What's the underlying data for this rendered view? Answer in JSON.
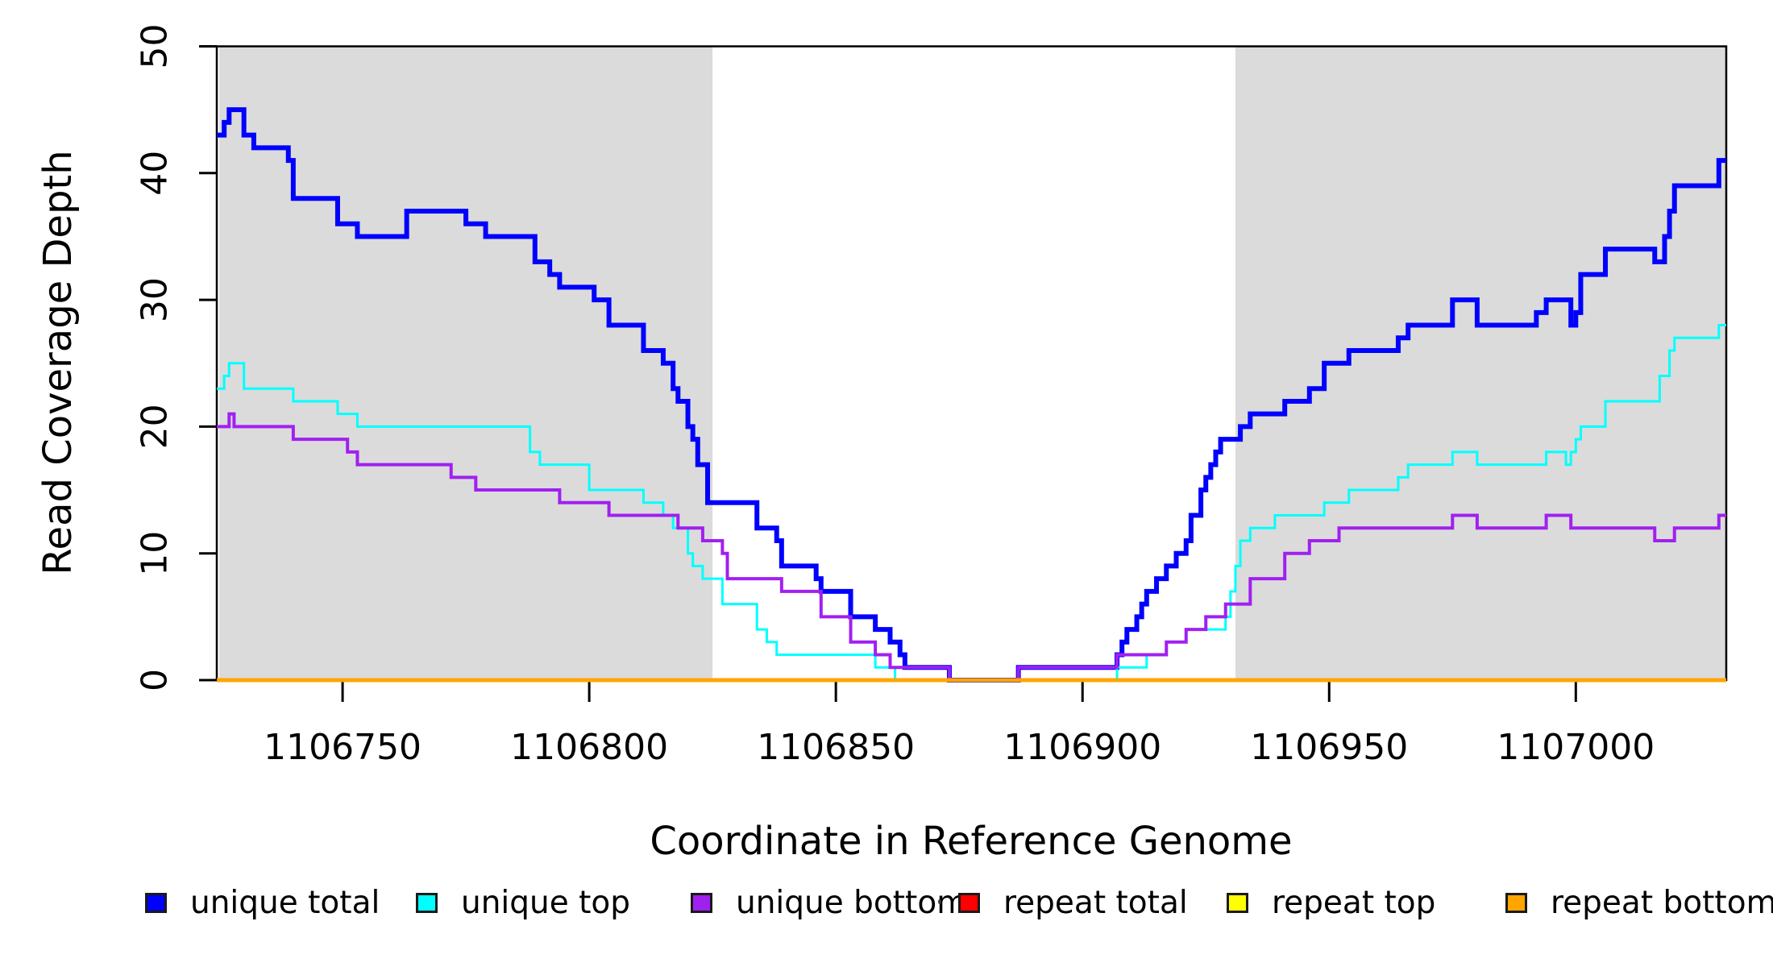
{
  "chart_data": {
    "type": "line",
    "subtype": "step",
    "title": "",
    "xlabel": "Coordinate in Reference Genome",
    "ylabel": "Read Coverage Depth",
    "xlim": [
      1106724.5,
      1107030.5
    ],
    "ylim": [
      0,
      50
    ],
    "x_ticks": [
      1106750,
      1106800,
      1106850,
      1106900,
      1106950,
      1107000
    ],
    "y_ticks": [
      0,
      10,
      20,
      30,
      40,
      50
    ],
    "grid": false,
    "legend_position": "bottom",
    "background_color": "#FFFFFF",
    "shaded_regions": [
      {
        "x_start": 1106725,
        "x_end": 1106825,
        "color": "#DBDBDB"
      },
      {
        "x_start": 1106931,
        "x_end": 1107030.5,
        "color": "#DBDBDB"
      }
    ],
    "series": [
      {
        "name": "unique total",
        "color": "#0000FF",
        "line_width": 6,
        "points": [
          [
            1106724.5,
            43
          ],
          [
            1106726,
            44
          ],
          [
            1106727,
            45
          ],
          [
            1106730,
            43
          ],
          [
            1106732,
            42
          ],
          [
            1106739,
            41
          ],
          [
            1106740,
            38
          ],
          [
            1106749,
            36
          ],
          [
            1106753,
            35
          ],
          [
            1106763,
            37
          ],
          [
            1106775,
            36
          ],
          [
            1106779,
            35
          ],
          [
            1106789,
            33
          ],
          [
            1106792,
            32
          ],
          [
            1106794,
            31
          ],
          [
            1106801,
            30
          ],
          [
            1106804,
            28
          ],
          [
            1106811,
            26
          ],
          [
            1106815,
            25
          ],
          [
            1106817,
            23
          ],
          [
            1106818,
            22
          ],
          [
            1106820,
            20
          ],
          [
            1106821,
            19
          ],
          [
            1106822,
            17
          ],
          [
            1106824,
            14
          ],
          [
            1106834,
            12
          ],
          [
            1106838,
            11
          ],
          [
            1106839,
            9
          ],
          [
            1106846,
            8
          ],
          [
            1106847,
            7
          ],
          [
            1106853,
            5
          ],
          [
            1106858,
            4
          ],
          [
            1106861,
            3
          ],
          [
            1106863,
            2
          ],
          [
            1106864,
            1
          ],
          [
            1106873,
            0
          ],
          [
            1106887,
            1
          ],
          [
            1106907,
            2
          ],
          [
            1106908,
            3
          ],
          [
            1106909,
            4
          ],
          [
            1106911,
            5
          ],
          [
            1106912,
            6
          ],
          [
            1106913,
            7
          ],
          [
            1106915,
            8
          ],
          [
            1106917,
            9
          ],
          [
            1106919,
            10
          ],
          [
            1106921,
            11
          ],
          [
            1106922,
            13
          ],
          [
            1106924,
            15
          ],
          [
            1106925,
            16
          ],
          [
            1106926,
            17
          ],
          [
            1106927,
            18
          ],
          [
            1106928,
            19
          ],
          [
            1106932,
            20
          ],
          [
            1106934,
            21
          ],
          [
            1106941,
            22
          ],
          [
            1106946,
            23
          ],
          [
            1106949,
            25
          ],
          [
            1106954,
            26
          ],
          [
            1106964,
            27
          ],
          [
            1106966,
            28
          ],
          [
            1106975,
            30
          ],
          [
            1106980,
            28
          ],
          [
            1106992,
            29
          ],
          [
            1106994,
            30
          ],
          [
            1106999,
            28
          ],
          [
            1107000,
            29
          ],
          [
            1107001,
            32
          ],
          [
            1107006,
            34
          ],
          [
            1107016,
            33
          ],
          [
            1107018,
            35
          ],
          [
            1107019,
            37
          ],
          [
            1107020,
            39
          ],
          [
            1107029,
            41
          ]
        ]
      },
      {
        "name": "unique top",
        "color": "#00FFFF",
        "line_width": 3,
        "points": [
          [
            1106724.5,
            23
          ],
          [
            1106726,
            24
          ],
          [
            1106727,
            25
          ],
          [
            1106730,
            23
          ],
          [
            1106740,
            22
          ],
          [
            1106749,
            21
          ],
          [
            1106753,
            20
          ],
          [
            1106788,
            18
          ],
          [
            1106790,
            17
          ],
          [
            1106800,
            15
          ],
          [
            1106811,
            14
          ],
          [
            1106815,
            13
          ],
          [
            1106817,
            12
          ],
          [
            1106820,
            10
          ],
          [
            1106821,
            9
          ],
          [
            1106823,
            8
          ],
          [
            1106827,
            6
          ],
          [
            1106834,
            4
          ],
          [
            1106836,
            3
          ],
          [
            1106838,
            2
          ],
          [
            1106858,
            1
          ],
          [
            1106862,
            0
          ],
          [
            1106907,
            1
          ],
          [
            1106913,
            2
          ],
          [
            1106917,
            3
          ],
          [
            1106921,
            4
          ],
          [
            1106929,
            5
          ],
          [
            1106930,
            7
          ],
          [
            1106931,
            9
          ],
          [
            1106932,
            11
          ],
          [
            1106934,
            12
          ],
          [
            1106939,
            13
          ],
          [
            1106949,
            14
          ],
          [
            1106954,
            15
          ],
          [
            1106964,
            16
          ],
          [
            1106966,
            17
          ],
          [
            1106975,
            18
          ],
          [
            1106980,
            17
          ],
          [
            1106994,
            18
          ],
          [
            1106998,
            17
          ],
          [
            1106999,
            18
          ],
          [
            1107000,
            19
          ],
          [
            1107001,
            20
          ],
          [
            1107006,
            22
          ],
          [
            1107017,
            24
          ],
          [
            1107019,
            26
          ],
          [
            1107020,
            27
          ],
          [
            1107029,
            28
          ]
        ]
      },
      {
        "name": "unique bottom",
        "color": "#A020F0",
        "line_width": 4,
        "points": [
          [
            1106724.5,
            20
          ],
          [
            1106727,
            21
          ],
          [
            1106728,
            20
          ],
          [
            1106740,
            19
          ],
          [
            1106751,
            18
          ],
          [
            1106753,
            17
          ],
          [
            1106772,
            16
          ],
          [
            1106777,
            15
          ],
          [
            1106794,
            14
          ],
          [
            1106804,
            13
          ],
          [
            1106818,
            12
          ],
          [
            1106823,
            11
          ],
          [
            1106827,
            10
          ],
          [
            1106828,
            8
          ],
          [
            1106839,
            7
          ],
          [
            1106847,
            5
          ],
          [
            1106853,
            3
          ],
          [
            1106858,
            2
          ],
          [
            1106861,
            1
          ],
          [
            1106873,
            0
          ],
          [
            1106887,
            1
          ],
          [
            1106907,
            2
          ],
          [
            1106917,
            3
          ],
          [
            1106921,
            4
          ],
          [
            1106925,
            5
          ],
          [
            1106929,
            6
          ],
          [
            1106934,
            8
          ],
          [
            1106941,
            10
          ],
          [
            1106946,
            11
          ],
          [
            1106952,
            12
          ],
          [
            1106975,
            13
          ],
          [
            1106980,
            12
          ],
          [
            1106994,
            13
          ],
          [
            1106999,
            12
          ],
          [
            1107016,
            11
          ],
          [
            1107020,
            12
          ],
          [
            1107029,
            13
          ]
        ]
      },
      {
        "name": "repeat total",
        "color": "#FF0000",
        "line_width": 3,
        "points": [
          [
            1106724.5,
            0
          ]
        ]
      },
      {
        "name": "repeat top",
        "color": "#FFFF00",
        "line_width": 3,
        "points": [
          [
            1106724.5,
            0
          ]
        ]
      },
      {
        "name": "repeat bottom",
        "color": "#FFA500",
        "line_width": 5,
        "points": [
          [
            1106724.5,
            0
          ]
        ]
      }
    ]
  },
  "legend": {
    "items": [
      {
        "label": "unique total",
        "color": "#0000FF"
      },
      {
        "label": "unique top",
        "color": "#00FFFF"
      },
      {
        "label": "unique bottom",
        "color": "#A020F0"
      },
      {
        "label": "repeat total",
        "color": "#FF0000"
      },
      {
        "label": "repeat top",
        "color": "#FFFF00"
      },
      {
        "label": "repeat bottom",
        "color": "#FFA500"
      }
    ]
  }
}
